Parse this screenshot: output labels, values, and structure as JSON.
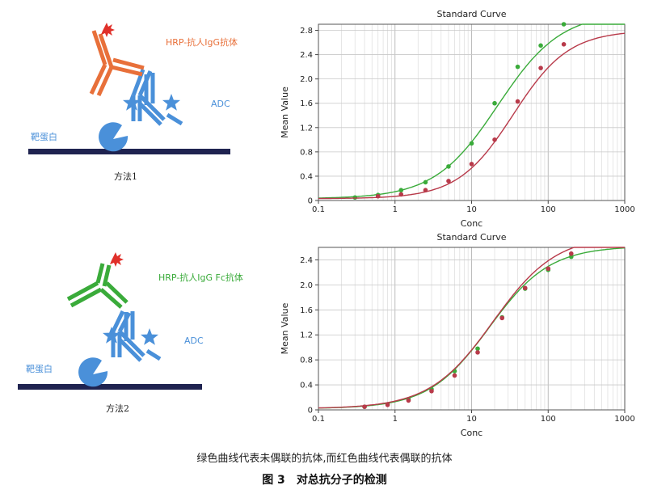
{
  "diagram1": {
    "detection_label": "HRP-抗人IgG抗体",
    "adc_label": "ADC",
    "target_label": "靶蛋白",
    "method_label": "方法1"
  },
  "diagram2": {
    "detection_label": "HRP-抗人IgG Fc抗体",
    "adc_label": "ADC",
    "target_label": "靶蛋白",
    "method_label": "方法2"
  },
  "colors": {
    "orange": "#e8703a",
    "blue": "#4a90d9",
    "green": "#3aab3a",
    "red": "#b83a4a",
    "bar": "#1f2350"
  },
  "chart_data": [
    {
      "type": "scatter",
      "title": "Standard Curve",
      "xlabel": "Conc",
      "ylabel": "Mean Value",
      "xscale": "log",
      "xlim": [
        0.1,
        1000
      ],
      "ylim": [
        0,
        2.9
      ],
      "xticks": [
        "0.1",
        "1",
        "10",
        "100",
        "1000"
      ],
      "yticks": [
        "0",
        "0.4",
        "0.8",
        "1.2",
        "1.6",
        "2.0",
        "2.4",
        "2.8"
      ],
      "ytick_values": [
        0,
        0.4,
        0.8,
        1.2,
        1.6,
        2.0,
        2.4,
        2.8
      ],
      "grid": true,
      "series": [
        {
          "name": "未偶联的抗体",
          "color": "#3aab3a",
          "x": [
            0.3,
            0.6,
            1.2,
            2.5,
            5,
            10,
            20,
            40,
            80,
            160
          ],
          "y": [
            0.05,
            0.09,
            0.17,
            0.3,
            0.56,
            0.94,
            1.6,
            2.2,
            2.55,
            2.9
          ],
          "fit": {
            "bottom": 0.03,
            "top": 3.1,
            "ec50": 22,
            "hill": 1.05
          }
        },
        {
          "name": "偶联的抗体",
          "color": "#b83a4a",
          "x": [
            0.6,
            1.2,
            2.5,
            5,
            10,
            20,
            40,
            80,
            160
          ],
          "y": [
            0.07,
            0.1,
            0.17,
            0.32,
            0.6,
            1.0,
            1.63,
            2.18,
            2.57
          ],
          "fit": {
            "bottom": 0.03,
            "top": 2.8,
            "ec50": 35,
            "hill": 1.2
          }
        }
      ]
    },
    {
      "type": "scatter",
      "title": "Standard Curve",
      "xlabel": "Conc",
      "ylabel": "Mean Value",
      "xscale": "log",
      "xlim": [
        0.1,
        1000
      ],
      "ylim": [
        0,
        2.6
      ],
      "xticks": [
        "0.1",
        "1",
        "10",
        "100",
        "1000"
      ],
      "yticks": [
        "0",
        "0.4",
        "0.8",
        "1.2",
        "1.6",
        "2.0",
        "2.4"
      ],
      "ytick_values": [
        0,
        0.4,
        0.8,
        1.2,
        1.6,
        2.0,
        2.4
      ],
      "grid": true,
      "series": [
        {
          "name": "未偶联的抗体",
          "color": "#3aab3a",
          "x": [
            0.4,
            0.8,
            1.5,
            3,
            6,
            12,
            25,
            50,
            100,
            200
          ],
          "y": [
            0.05,
            0.09,
            0.17,
            0.33,
            0.62,
            0.98,
            1.48,
            1.94,
            2.24,
            2.45
          ],
          "fit": {
            "bottom": 0.02,
            "top": 2.62,
            "ec50": 17,
            "hill": 1.1
          }
        },
        {
          "name": "偶联的抗体",
          "color": "#b83a4a",
          "x": [
            0.4,
            0.8,
            1.5,
            3,
            6,
            12,
            25,
            50,
            100,
            200
          ],
          "y": [
            0.05,
            0.08,
            0.15,
            0.3,
            0.55,
            0.92,
            1.47,
            1.95,
            2.26,
            2.5
          ],
          "fit": {
            "bottom": 0.02,
            "top": 2.8,
            "ec50": 19,
            "hill": 1.05
          }
        }
      ]
    }
  ],
  "caption": {
    "line1": "绿色曲线代表未偶联的抗体,而红色曲线代表偶联的抗体",
    "fig_label": "图 3",
    "fig_title": "对总抗分子的检测"
  }
}
